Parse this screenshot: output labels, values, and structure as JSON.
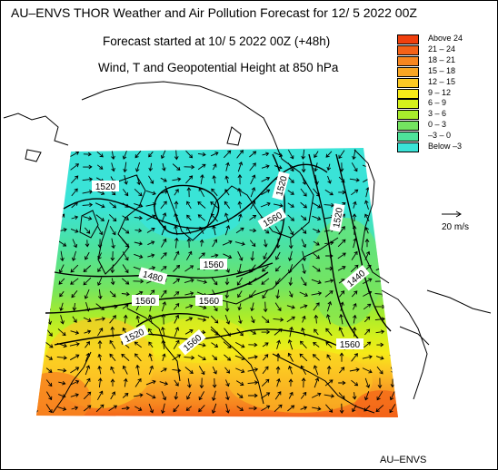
{
  "header": {
    "title": "AU–ENVS THOR Weather and Air Pollution Forecast for 12/ 5 2022  00Z",
    "subtitle": "Forecast started at 10/ 5 2022  00Z (+48h)",
    "parameter": "Wind, T and Geopotential Height at 850 hPa"
  },
  "legend": {
    "items": [
      {
        "label": "Above   24",
        "color": "#f0400e"
      },
      {
        "label": "21 –  24",
        "color": "#f46218"
      },
      {
        "label": "18 –  21",
        "color": "#f7861f"
      },
      {
        "label": "15 –  18",
        "color": "#f9a623"
      },
      {
        "label": "12 –  15",
        "color": "#fcc923"
      },
      {
        "label": "9 –  12",
        "color": "#f6ea18"
      },
      {
        "label": "6 –   9",
        "color": "#d5f01c"
      },
      {
        "label": "3 –   6",
        "color": "#a8ec2c"
      },
      {
        "label": "0 –   3",
        "color": "#74e460"
      },
      {
        "label": "–3 –   0",
        "color": "#4ee29a"
      },
      {
        "label": "Below   –3",
        "color": "#3ae3d7"
      }
    ]
  },
  "wind_reference": {
    "label": "20 m/s"
  },
  "contour_labels": [
    {
      "text": "1520"
    },
    {
      "text": "1560"
    },
    {
      "text": "1560"
    },
    {
      "text": "1480"
    },
    {
      "text": "1560"
    },
    {
      "text": "1560"
    },
    {
      "text": "1560"
    },
    {
      "text": "1520"
    },
    {
      "text": "1560"
    },
    {
      "text": "1520"
    },
    {
      "text": "1520"
    },
    {
      "text": "1440"
    }
  ],
  "footer": {
    "credit": "AU–ENVS"
  }
}
